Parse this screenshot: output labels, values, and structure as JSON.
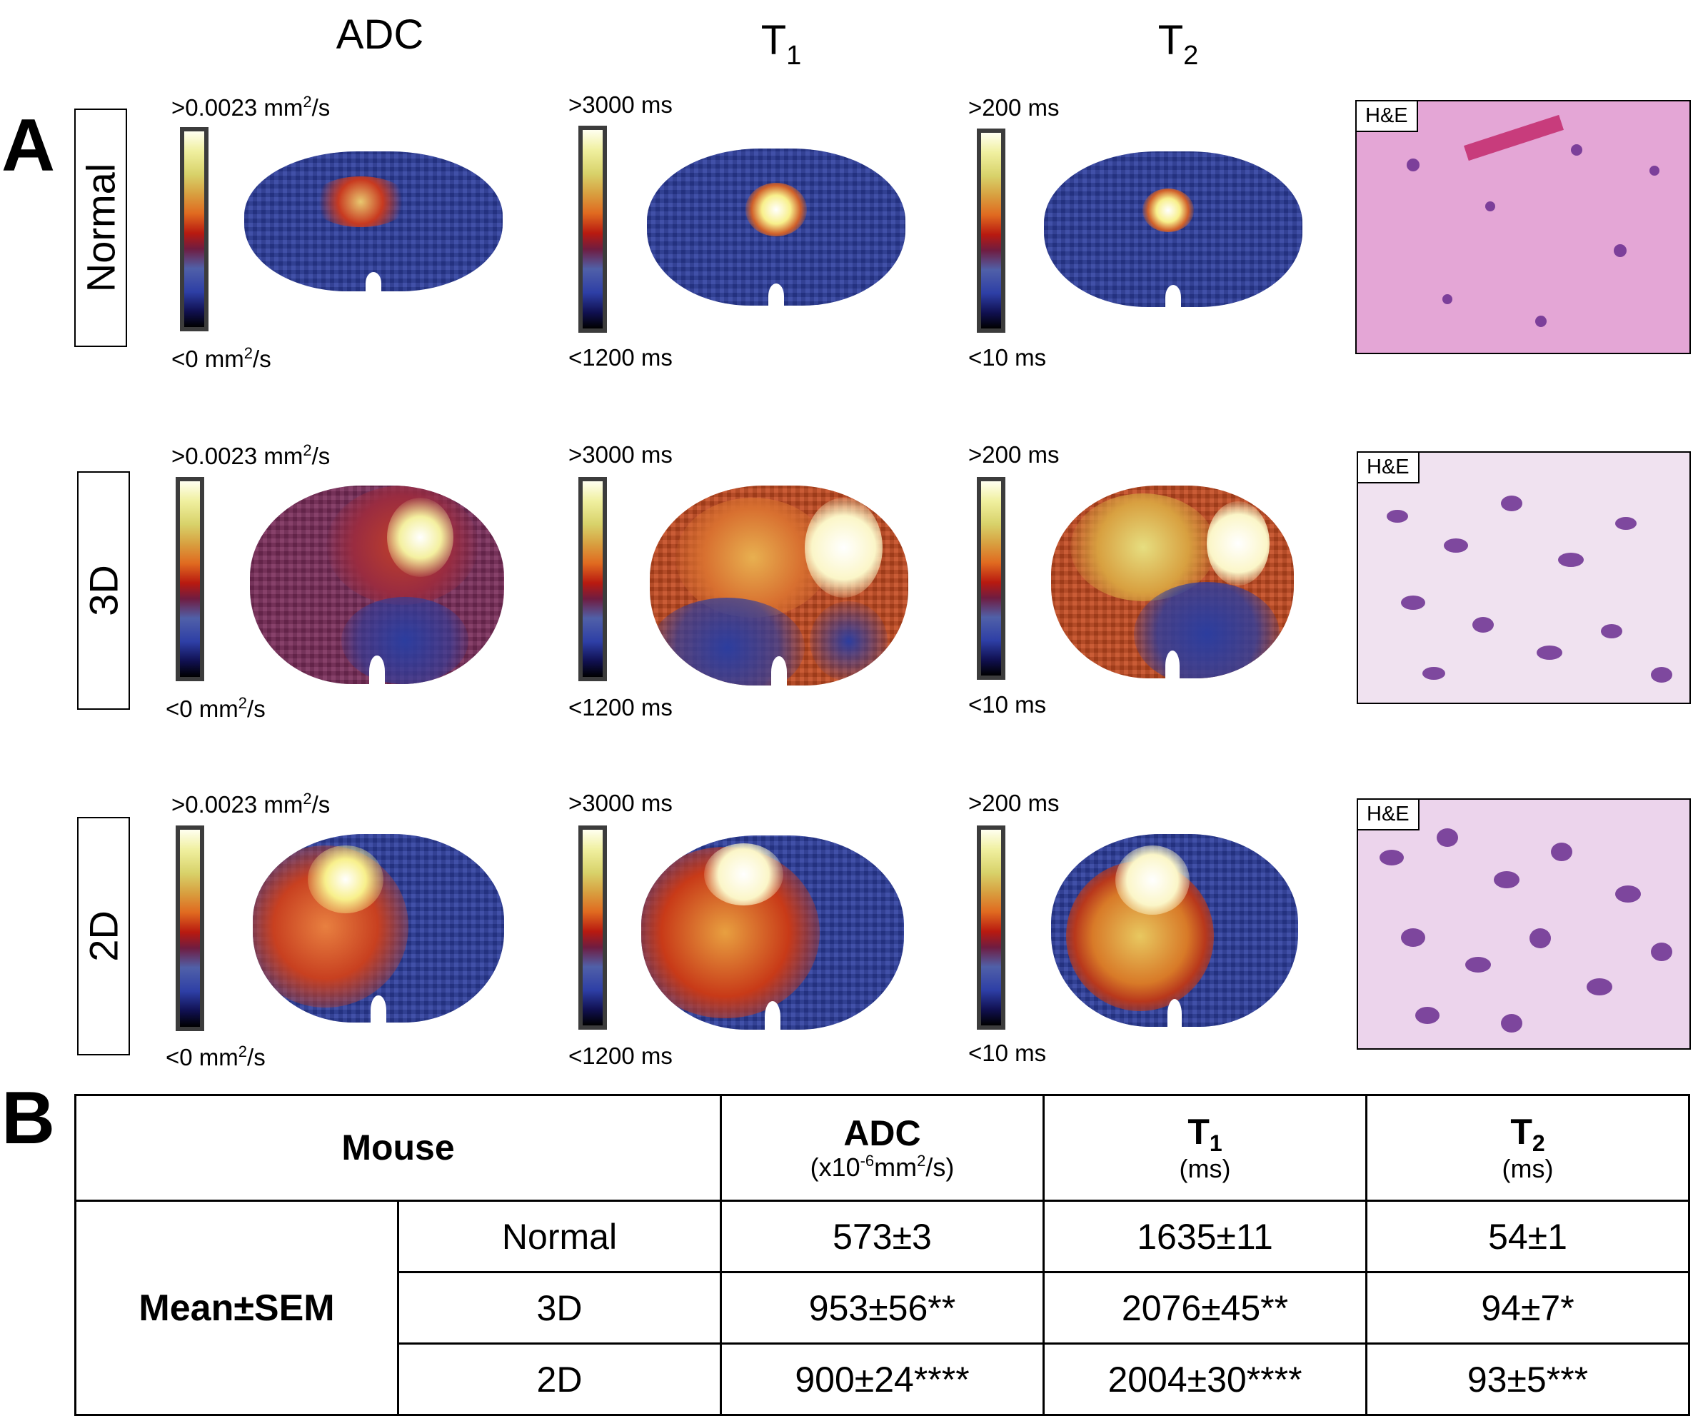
{
  "panel_a": {
    "letter": "A",
    "columns": [
      {
        "name": "ADC",
        "sub": ""
      },
      {
        "name": "T",
        "sub": "1"
      },
      {
        "name": "T",
        "sub": "2"
      }
    ],
    "rows": [
      {
        "label": "Normal",
        "he_tag": "H&E",
        "adc": {
          "max": ">0.0023 mm",
          "max_sup": "2",
          "max_tail": "/s",
          "min": "<0 mm",
          "min_sup": "2",
          "min_tail": "/s"
        },
        "t1": {
          "max": ">3000 ms",
          "min": "<1200 ms"
        },
        "t2": {
          "max": ">200 ms",
          "min": "<10 ms"
        }
      },
      {
        "label": "3D",
        "he_tag": "H&E",
        "adc": {
          "max": ">0.0023 mm",
          "max_sup": "2",
          "max_tail": "/s",
          "min": "<0 mm",
          "min_sup": "2",
          "min_tail": "/s"
        },
        "t1": {
          "max": ">3000 ms",
          "min": "<1200 ms"
        },
        "t2": {
          "max": ">200 ms",
          "min": "<10 ms"
        }
      },
      {
        "label": "2D",
        "he_tag": "H&E",
        "adc": {
          "max": ">0.0023 mm",
          "max_sup": "2",
          "max_tail": "/s",
          "min": "<0 mm",
          "min_sup": "2",
          "min_tail": "/s"
        },
        "t1": {
          "max": ">3000 ms",
          "min": "<1200 ms"
        },
        "t2": {
          "max": ">200 ms",
          "min": "<10 ms"
        }
      }
    ]
  },
  "panel_b": {
    "letter": "B",
    "header": {
      "mouse": "Mouse",
      "adc": {
        "name": "ADC",
        "unit_pre": "(x10",
        "unit_exp": "-6",
        "unit_mid": "mm",
        "unit_exp2": "2",
        "unit_post": "/s)"
      },
      "t1": {
        "name": "T",
        "sub": "1",
        "unit": "(ms)"
      },
      "t2": {
        "name": "T",
        "sub": "2",
        "unit": "(ms)"
      }
    },
    "stat_label": "Mean±SEM",
    "rows": [
      {
        "group": "Normal",
        "adc": "573±3",
        "t1": "1635±11",
        "t2": "54±1"
      },
      {
        "group": "3D",
        "adc": "953±56**",
        "t1": "2076±45**",
        "t2": "94±7*"
      },
      {
        "group": "2D",
        "adc": "900±24****",
        "t1": "2004±30****",
        "t2": "93±5***"
      }
    ]
  },
  "colors": {
    "map_blue": "#2c3d9e",
    "he_pink": "#e8a8d8",
    "he_nuclei": "#6a2d8f"
  }
}
